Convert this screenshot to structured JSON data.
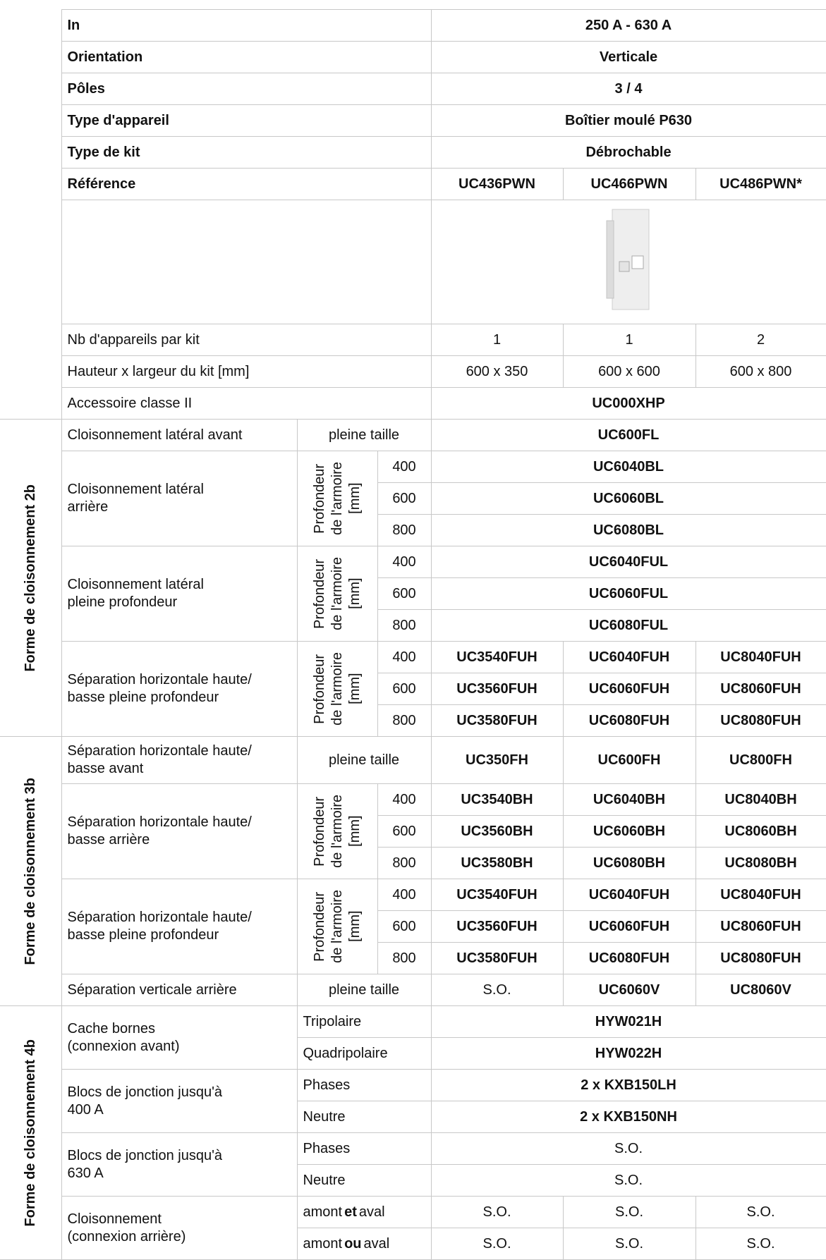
{
  "specs": [
    {
      "label": "In",
      "value": "250 A - 630 A"
    },
    {
      "label": "Orientation",
      "value": "Verticale"
    },
    {
      "label": "Pôles",
      "value": "3 / 4"
    },
    {
      "label": "Type d'appareil",
      "value": "Boîtier moulé P630"
    },
    {
      "label": "Type de kit",
      "value": "Débrochable"
    }
  ],
  "reference": {
    "label": "Référence",
    "values": [
      "UC436PWN",
      "UC466PWN",
      "UC486PWN*"
    ]
  },
  "kit_count": {
    "label": "Nb d'appareils par kit",
    "values": [
      1,
      1,
      2
    ]
  },
  "kit_size": {
    "label": "Hauteur x largeur du kit [mm]",
    "values": [
      "600 x 350",
      "600 x 600",
      "600 x 800"
    ]
  },
  "accessory": {
    "label": "Accessoire classe II",
    "value": "UC000XHP"
  },
  "sections": [
    {
      "title": "Forme de cloisonnement 2b",
      "groups": [
        {
          "label": [
            "Cloisonnement latéral avant"
          ],
          "condition": "pleine taille",
          "values": [
            "UC600FL"
          ]
        },
        {
          "label": [
            "Cloisonnement latéral",
            "arrière"
          ],
          "depth_label": [
            "Profondeur",
            "de l'armoire",
            "[mm]"
          ],
          "rows": [
            {
              "depth": 400,
              "values": [
                "UC6040BL"
              ]
            },
            {
              "depth": 600,
              "values": [
                "UC6060BL"
              ]
            },
            {
              "depth": 800,
              "values": [
                "UC6080BL"
              ]
            }
          ]
        },
        {
          "label": [
            "Cloisonnement latéral",
            "pleine profondeur"
          ],
          "depth_label": [
            "Profondeur",
            "de l'armoire",
            "[mm]"
          ],
          "rows": [
            {
              "depth": 400,
              "values": [
                "UC6040FUL"
              ]
            },
            {
              "depth": 600,
              "values": [
                "UC6060FUL"
              ]
            },
            {
              "depth": 800,
              "values": [
                "UC6080FUL"
              ]
            }
          ]
        },
        {
          "label": [
            "Séparation horizontale haute/",
            "basse pleine profondeur"
          ],
          "depth_label": [
            "Profondeur",
            "de l'armoire",
            "[mm]"
          ],
          "rows": [
            {
              "depth": 400,
              "values": [
                "UC3540FUH",
                "UC6040FUH",
                "UC8040FUH"
              ]
            },
            {
              "depth": 600,
              "values": [
                "UC3560FUH",
                "UC6060FUH",
                "UC8060FUH"
              ]
            },
            {
              "depth": 800,
              "values": [
                "UC3580FUH",
                "UC6080FUH",
                "UC8080FUH"
              ]
            }
          ]
        }
      ]
    },
    {
      "title": "Forme de cloisonnement 3b",
      "groups": [
        {
          "label": [
            "Séparation horizontale haute/",
            "basse avant"
          ],
          "condition": "pleine taille",
          "values": [
            "UC350FH",
            "UC600FH",
            "UC800FH"
          ]
        },
        {
          "label": [
            "Séparation horizontale haute/",
            "basse arrière"
          ],
          "depth_label": [
            "Profondeur",
            "de l'armoire",
            "[mm]"
          ],
          "rows": [
            {
              "depth": 400,
              "values": [
                "UC3540BH",
                "UC6040BH",
                "UC8040BH"
              ]
            },
            {
              "depth": 600,
              "values": [
                "UC3560BH",
                "UC6060BH",
                "UC8060BH"
              ]
            },
            {
              "depth": 800,
              "values": [
                "UC3580BH",
                "UC6080BH",
                "UC8080BH"
              ]
            }
          ]
        },
        {
          "label": [
            "Séparation horizontale haute/",
            "basse pleine profondeur"
          ],
          "depth_label": [
            "Profondeur",
            "de l'armoire",
            "[mm]"
          ],
          "rows": [
            {
              "depth": 400,
              "values": [
                "UC3540FUH",
                "UC6040FUH",
                "UC8040FUH"
              ]
            },
            {
              "depth": 600,
              "values": [
                "UC3560FUH",
                "UC6060FUH",
                "UC8060FUH"
              ]
            },
            {
              "depth": 800,
              "values": [
                "UC3580FUH",
                "UC6080FUH",
                "UC8080FUH"
              ]
            }
          ]
        },
        {
          "label": [
            "Séparation verticale arrière"
          ],
          "condition": "pleine taille",
          "values": [
            "S.O.",
            "UC6060V",
            "UC8060V"
          ]
        }
      ]
    },
    {
      "title": "Forme de cloisonnement 4b",
      "groups": [
        {
          "label": [
            "Cache bornes",
            "(connexion avant)"
          ],
          "rows": [
            {
              "condition": "Tripolaire",
              "values": [
                "HYW021H"
              ]
            },
            {
              "condition": "Quadripolaire",
              "values": [
                "HYW022H"
              ]
            }
          ]
        },
        {
          "label": [
            "Blocs de jonction jusqu'à",
            "400 A"
          ],
          "rows": [
            {
              "condition": "Phases",
              "values": [
                "2 x KXB150LH"
              ]
            },
            {
              "condition": "Neutre",
              "values": [
                "2 x KXB150NH"
              ]
            }
          ]
        },
        {
          "label": [
            "Blocs de jonction jusqu'à",
            "630 A"
          ],
          "rows": [
            {
              "condition": "Phases",
              "values": [
                "S.O."
              ]
            },
            {
              "condition": "Neutre",
              "values": [
                "S.O."
              ]
            }
          ]
        },
        {
          "label": [
            "Cloisonnement",
            "(connexion arrière)"
          ],
          "rows": [
            {
              "condition": [
                "amont",
                "et",
                "aval"
              ],
              "values": [
                "S.O.",
                "S.O.",
                "S.O."
              ]
            },
            {
              "condition": [
                "amont",
                "ou",
                "aval"
              ],
              "values": [
                "S.O.",
                "S.O.",
                "S.O."
              ]
            }
          ]
        }
      ]
    }
  ]
}
